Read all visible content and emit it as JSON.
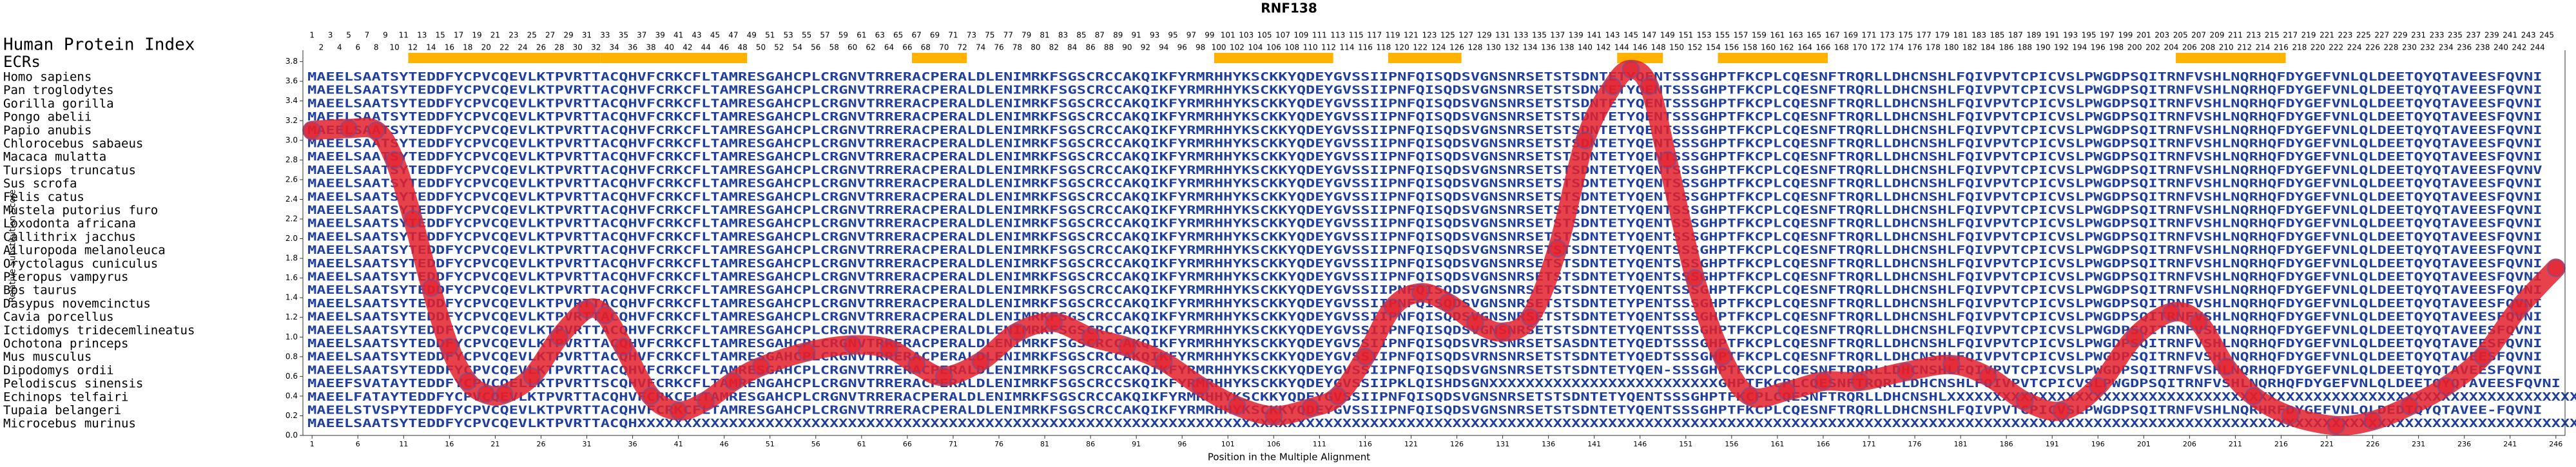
{
  "chart_data": {
    "type": "line",
    "title": "RNF138",
    "xlabel": "Position in the Multiple Alignment",
    "ylabel": "Relative Substitution Score",
    "color": "#e3202b",
    "marker_edge_color": "#3d5fc4",
    "xlim": [
      0,
      247
    ],
    "ylim": [
      0,
      3.85
    ],
    "xticks": [
      1,
      6,
      11,
      16,
      21,
      26,
      31,
      36,
      41,
      46,
      51,
      56,
      61,
      66,
      71,
      76,
      81,
      86,
      91,
      96,
      101,
      106,
      111,
      116,
      121,
      126,
      131,
      136,
      141,
      146,
      151,
      156,
      161,
      166,
      171,
      176,
      181,
      186,
      191,
      196,
      201,
      206,
      211,
      216,
      221,
      226,
      231,
      236,
      241,
      246
    ],
    "yticks": [
      {
        "value": 0,
        "label": "0.0"
      },
      0.2,
      0.4,
      0.6,
      0.8,
      {
        "value": 1,
        "label": "1.0"
      },
      1.2,
      1.4,
      1.6,
      1.8,
      {
        "value": 2,
        "label": "2.0"
      },
      2.2,
      2.4,
      2.6,
      2.8,
      {
        "value": 3,
        "label": "3.0"
      },
      3.2,
      3.4,
      3.6,
      3.8
    ],
    "x": [
      1,
      5,
      8,
      10,
      12,
      14,
      16,
      18,
      20,
      22,
      25,
      28,
      31,
      33,
      35,
      38,
      41,
      44,
      47,
      50,
      55,
      60,
      64,
      67,
      70,
      74,
      78,
      82,
      86,
      90,
      94,
      98,
      102,
      106,
      110,
      113,
      116,
      119,
      122,
      125,
      128,
      131,
      134,
      137,
      140,
      143,
      145,
      147,
      149,
      152,
      155,
      158,
      162,
      166,
      170,
      175,
      180,
      184,
      188,
      192,
      196,
      200,
      204,
      207,
      210,
      213,
      217,
      222,
      226,
      230,
      234,
      238,
      242,
      246
    ],
    "values": [
      3.1,
      3.12,
      3.1,
      2.8,
      2.2,
      1.5,
      0.9,
      0.55,
      0.42,
      0.42,
      0.6,
      1.0,
      1.28,
      1.22,
      0.9,
      0.4,
      0.25,
      0.35,
      0.55,
      0.7,
      0.85,
      0.92,
      0.88,
      0.72,
      0.6,
      0.75,
      1.05,
      1.15,
      1.0,
      0.9,
      0.75,
      0.5,
      0.3,
      0.2,
      0.28,
      0.4,
      0.8,
      1.3,
      1.45,
      1.35,
      1.15,
      1.05,
      1.2,
      1.9,
      3.0,
      3.55,
      3.72,
      3.55,
      2.8,
      1.6,
      0.8,
      0.4,
      0.45,
      0.55,
      0.55,
      0.65,
      0.72,
      0.6,
      0.35,
      0.25,
      0.5,
      1.0,
      1.25,
      1.15,
      0.7,
      0.4,
      0.2,
      0.1,
      0.15,
      0.3,
      0.5,
      0.8,
      1.3,
      1.7
    ],
    "alignment": {
      "index_label": "Human Protein Index",
      "protein_index": [
        1,
        2,
        3,
        4,
        5,
        6,
        7,
        8,
        9,
        10,
        11,
        12,
        13,
        14,
        15,
        16,
        17,
        18,
        19,
        20,
        21,
        22,
        23,
        24,
        25,
        26,
        27,
        28,
        29,
        30,
        31,
        32,
        33,
        34,
        35,
        36,
        37,
        38,
        39,
        40,
        41,
        42,
        43,
        44,
        45,
        46,
        47,
        48,
        49,
        50,
        51,
        52,
        53,
        54,
        55,
        56,
        57,
        58,
        59,
        60,
        61,
        62,
        63,
        64,
        65,
        66,
        67,
        68,
        69,
        70,
        71,
        72,
        73,
        74,
        75,
        76,
        77,
        78,
        79,
        80,
        81,
        82,
        83,
        84,
        85,
        86,
        87,
        88,
        89,
        90,
        91,
        92,
        93,
        94,
        95,
        96,
        97,
        98,
        99,
        100,
        101,
        102,
        103,
        104,
        105,
        106,
        107,
        108,
        109,
        110,
        111,
        112,
        113,
        114,
        115,
        116,
        117,
        118,
        119,
        120,
        121,
        122,
        123,
        124,
        125,
        126,
        127,
        128,
        129,
        130,
        131,
        132,
        133,
        134,
        135,
        136,
        137,
        138,
        139,
        140,
        141,
        142,
        143,
        144,
        145,
        146,
        147,
        148,
        149,
        150,
        151,
        152,
        153,
        154,
        155,
        156,
        157,
        158,
        159,
        160,
        161,
        162,
        163,
        164,
        165,
        166,
        167,
        168,
        169,
        170,
        171,
        172,
        173,
        174,
        175,
        176,
        177,
        178,
        179,
        180,
        181,
        182,
        183,
        184,
        185,
        186,
        187,
        188,
        189,
        190,
        191,
        192,
        193,
        194,
        195,
        196,
        197,
        198,
        199,
        200,
        201,
        202,
        203,
        204,
        205,
        206,
        207,
        208,
        209,
        210,
        211,
        212,
        213,
        214,
        215,
        216,
        217,
        218,
        219,
        220,
        221,
        222,
        223,
        224,
        225,
        226,
        227,
        228,
        229,
        230,
        231,
        232,
        233,
        234,
        235,
        236,
        237,
        238,
        239,
        240,
        241,
        242,
        243,
        244,
        245
      ],
      "ecr_label": "ECRs",
      "ecr_color": "#ffb300",
      "ecrs": [
        [
          12,
          32
        ],
        [
          33,
          48
        ],
        [
          67,
          72
        ],
        [
          100,
          112
        ],
        [
          119,
          126
        ],
        [
          144,
          148
        ],
        [
          155,
          166
        ],
        [
          205,
          216
        ]
      ],
      "rows": [
        {
          "name": "Homo sapiens",
          "sequence": "MAEELSAATSYTEDDFYCPVCQEVLKTPVRTTACQHVFCRKCFLTAMRESGAHCPLCRGNVTRRERACPERALDLENIMRKFSGSCRCCAKQIKFYRMRHHYKSCKKYQDEYGVSSIIPNFQISQDSVGNSNRSETSTSDNTETYQENTSSSGHPTFKCPLCQESNFTRQRLLDHCNSHLFQIVPVTCPICVSLPWGDPSQITRNFVSHLNQRHQFDYGEFVNLQLDEETQYQTAVEESFQVNI"
        },
        {
          "name": "Pan troglodytes",
          "sequence": "MAEELSAATSYTEDDFYCPVCQEVLKTPVRTTACQHVFCRKCFLTAMRESGAHCPLCRGNVTRRERACPERALDLENIMRKFSGSCRCCAKQIKFYRMRHHYKSCKKYQDEYGVSSIIPNFQISQDSVGNSNRSETSTSDNTETYQENTSSSGHPTFKCPLCQESNFTRQRLLDHCNSHLFQIVPVTCPICVSLPWGDPSQITRNFVSHLNQRHQFDYGEFVNLQLDEETQYQTAVEESFQVNI"
        },
        {
          "name": "Gorilla gorilla",
          "sequence": "MAEELSAATSYTEDDFYCPVCQEVLKTPVRTTACQHVFCRKCFLTAMRESGAHCPLCRGNVTRRERACPERALDLENIMRKFSGSCRCCAKQIKFYRMRHHYKSCKKYQDEYGVSSIIPNFQISQDSVGNSNRSETSTSDNTETYQENTSSSGHPTFKCPLCQESNFTRQRLLDHCNSHLFQIVPVTCPICVSLPWGDPSQITRNFVSHLNQRHQFDYGEFVNLQLDEETQYQTAVEESFQVNI"
        },
        {
          "name": "Pongo abelii",
          "sequence": "MAEELSAATSYTEDDFYCPVCQEVLKTPVRTTACQHVFCRKCFLTAMRESGAHCPLCRGNVTRRERACPERALDLENIMRKFSGSCRCCAKQIKFYRMRHHYKSCKKYQDEYGVSSIIPNFQISQDSVGNSNRSETSTSDNTETYQENTSSSGHPTFKCPLCQESNFTRQRLLDHCNSHLFQIVPVTCPICVSLPWGDPSQITRNFVSHLNQRHQFDYGEFVNLQLDEETQYQTAVEESFQVNI"
        },
        {
          "name": "Papio anubis",
          "sequence": "MAEELSAATSYTEDDFYCPVCQEVLKTPVRTTACQHVFCRKCFLTAMRESGAHCPLCRGNVTRRERACPERALDLENIMRKFSGSCRCCAKQIKFYRMRHHYKSCKKYQDEYGVSSIIPNFQISQDSVGNSNRSETSTSDNTETYQENTSSSGHPTFKCPLCQESNFTRQRLLDHCNSHLFQIVPVTCPICVSLPWGDPSQITRNFVSHLNQRHQFDYGEFVNLQLDEETQYQTAVEESFQVNI"
        },
        {
          "name": "Chlorocebus sabaeus",
          "sequence": "MAEELSAATSYTEDDFYCPVCQEVLKTPVRTTACQHVFCRKCFLTAMRESGAHCPLCRGNVTRRERACPERALDLENIMRKFSGSCRCCAKQIKFYRMRHHYKSCKKYQDEYGVSSIIPNFQISQDSVGNSNRSETSTSDNTETYQENTSSSGHPTFKCPLCQESNFTRQRLLDHCNSHLFQIVPVTCPICVSLPWGDPSQITRNFVSHLNQRHQFDYGEFVNLQLDEETQYQTAVEESFQVNI"
        },
        {
          "name": "Macaca mulatta",
          "sequence": "MAEELSAATSYTEDDFYCPVCQEVLKTPVRTTACQHVFCRKCFLTAMRESGAHCPLCRGNVTRRERACPERALDLENIMRKFSGSCRCCAKQIKFYRMRHHYKSCKKYQDEYGVSSIIPNFQISQDSVGNSNRSETSTSDNTETYQENTSSSGHPTFKCPLCQESNFTRQRLLDHCNSHLFQIVPVTCPICVSLPWGDPSQITRNFVSHLNQRHQFDYGEFVNLQLDEETQYQTAVEESFQVNI"
        },
        {
          "name": "Tursiops truncatus",
          "sequence": "MAEELSAATSYTEDDFYCPVCQEVLKTPVRTTACQHVFCRKCFLTAMRESGAHCPLCRGNVTRRERACPERALDLENIMRKFSGSCRCCAKQIKFYRMRHHYKSCKKYQDEYGVSSIIPNFQISQDSVGNSNRSETSTSDNTETYQENTSSSGHPTFKCPLCQESNFTRQRLLDHCNSHLFQIVPVTCPICVSLPWGDPSQITRNFVSHLNQRHQFDYGEFVNLQLDEETQYQTAVEESFQVNV"
        },
        {
          "name": "Sus scrofa",
          "sequence": "MAEELSAATSYTEDDFYCPVCQEVLKTPVRTTACQHVFCRKCFLTAMRESGAHCPLCRGNVTRRERACPERALDLENIMRKFSGSCRCCAKQIKFYRMRHHYKSCKKYQDEYGVSSIIPNFQISQDSVGNSNRSETSTSDNTETYQENTSSSGHPTFKCPLCQESNFTRQRLLDHCNSHLFQIVPVTCPICVSLPWGDPSQITRNFVSHLNQRHQFDYGEFVNLQLDEETQYQTAVEESFQVNI"
        },
        {
          "name": "Felis catus",
          "sequence": "MAEELSAATSYTEDDFYCPVCQEVLKTPVRTTACQHVFCRKCFLTAMRESGAHCPLCRGNVTRRERACPERALDLENIMRKFSGSCRCCAKQIKFYRMRHHYKSCKKYQDEYGVSSIIPNFQISQDSVGNSNRSETSTSDNTETYQENTSSSGHPTFKCPLCQESNFTRQRLLDHCNSHLFQIVPVTCPICVSLPWGDPSQITRNFVSHLNQRHQFDYGEFVNLQLDEETQYQTAVEESFQVNI"
        },
        {
          "name": "Mustela putorius furo",
          "sequence": "MAEELSAATSYTEDDFYCPVCQEVLKTPVRTTACQHVFCRKCFLTAMRESGAHCPLCRGNVTRRERACPERALDLENIMRKFSGSCRCCAKQIKFYRMRHHYKSCKKYQDEYGVSSIIPNFQISQDSVGNSNRSETSTSDNTETYQENTSSSGHPTFKCPLCQESNFTRQRLLDHCNSHLFQIVPVTCPICVSLPWGDPSQITRNFVSHLNQRHQFDYGEFVNLQLDEETQYQTAVEESFQVNI"
        },
        {
          "name": "Loxodonta africana",
          "sequence": "MAEELSAATSYTEDDFYCPVCQEVLKTPVRTTACQHVFCRKCFLTAMRESGAHCPLCRGNVTRRERACPERALDLENIMRKFSGSCRCCAKQIKFYRMRHHYKSCKKYQDEYGVSSIIPNFQISQDSVGNSNRSETSTSDNTETYQENTSSSGHPTFKCPLCQESNFTRQRLLDHCNSHLFQIVPVTCPICVSLPWGDPSQITRNFVSHLNQRHQFDYGEFVNLQLDEETQYQTAVEESFQVNI"
        },
        {
          "name": "Callithrix jacchus",
          "sequence": "MAEELSAATSYTEDDFYCPVCQEVLKTPVRTTACQHVFCRKCFLTAMRESGAHCPLCRGNVTRRERACPERALDLENIMRKFSGSCRCCAKQIKFYRMRHHYKSCKKYQDEYGVSSIIPNFQISQDSVGNSNRSETSTSDNTETYQENTSSSGHPTFKCPLCQESNFTRQRLLDHCNSHLFQIVPVTCPICVSLPWGDPSQITRNFVSHLNQRHQFDYGEFVNLQLDEETQYQTAVEESFQVNI"
        },
        {
          "name": "Ailuropoda melanoleuca",
          "sequence": "MAEELSAATSYTEDDFYCPVCQEVLKTPVRTTACQHVFCRKCFLTAMRESGAHCPLCRGNVTRRERACPERALDLENIMRKFSGSCRCCAKQIKFYRMRHHYKSCKKYQDEYGVSSIIPNFQISQDSVGNSNRSETSTSDNTETYQENTSSSGHPTFKCPLCQESNFTRQRLLDHCNSHLFQIVPVTCPICVSLPWGDPSQITRNFVSHLNQRHQFDYGEFVNLQLDEETQYQTAVEESFQVNI"
        },
        {
          "name": "Oryctolagus cuniculus",
          "sequence": "MAEELSAATSYTEDDFYCPVCQEVLKTPVRTTACQHVFCRKCFLTAMRESGAHCPLCRGNVTRRERACPERALDLENIMRKFSGSCRCCAKQIKFYRMRHHYKSCKKYQDEYGVSSIIPNFQISQDSVGNSNRSETSTSDNTETYQENTSSSGHPTFKCPLCQESNFTRQRLLDHCNSHLFQIVPVTCPICVSLPWGDPSQITRNFVSHLNQRHQFDYGEFVNLQLDEETQYQTAVEESFQVNI"
        },
        {
          "name": "Pteropus vampyrus",
          "sequence": "MAEELSAATSYTEDDFYCPVCQEVLKTPVRTTACQHVFCRKCFLTAMRESGAHCPLCRGNVTRRERACPERALDLENIMRKFSGSCRCCAKQIKFYRMRHHYKSCKKYQDEYGVSSIIPNFQISQDSVGNSNRSETSTSDNTETYQENTSSSGHPTFKCPLCQESNFTRQRLLDHCNSHLFQIVPVTCPICVSLPWGDPSQITRNFVSHLNQRHQFDYGEFVNLQLDEETQYQTAVEESFQVNI"
        },
        {
          "name": "Bos taurus",
          "sequence": "MAEELSAATSYTEDDFYCPVCQEVLKTPVRTTACQHVFCRKCFLTAMRESGAHCPLCRGNVTRRERACPERALDLENIMRKFSGSCRCCAKQIKFYRMRHHYKSCKKYQDEYGVSSIIPNFQISQDSVGNSNRSETSTSDNTETYQENTSSSGHPTFKCPLCQESNFTRQRLLDHCNSHLFQIVPVTCPICVSLPWGDPSQITRNFVSHLNQRHQFDYGEFVNLQLDEETQYQTAVEESFQVNI"
        },
        {
          "name": "Dasypus novemcinctus",
          "sequence": "MAEELSAATSYTEDDFYCPVCQEVLKTPVRTTACQHVFCRKCFLTAMRESGAHCPLCRGNVTRRERACPERALDLENIMRKFSGSCRCCAKQIKFYRMRHHYKSCKKYQDEYGVSSIIPNFQISQDSVGNSNRSETSTSDNTETYPENTSSSGHPTFKCPLCQESNFTRQRLLDHCNSHLFQIVPVTCPICVSLPWGDPSQITRNFVSHLNQRHQFDYGEFVNLQLDEETQYQTAVEESFQVNI"
        },
        {
          "name": "Cavia porcellus",
          "sequence": "MAEELSAATSYTEDDFYCPVCQEVLKTPVRTTACQHVFCRKCFLTAMRESGAHCPLCRGNVTRRERACPERALDLENIMRKFSGSCRCCAKQIKFYRMRHHYKSCKKYQDEYGVSSIIPNFQISQDSVGNSNRSETSTSDNTETYQENTSSSGHPTFKCPLCQESNFTRQRLLDHCNSHLFQIVPVTCPICVSLPWGDPSQITRNFVSHLNQRHQFDYGEFVNLQLDEETQYQTAVEESFQVNI"
        },
        {
          "name": "Ictidomys tridecemlineatus",
          "sequence": "MAEELSAATSYTEDDFYCPVCQEVLKTPVRTTACQHVFCRKCFLTAMRESGAHCPLCRGNVTRRERACPERALDLENIMRKFSGSCRCCAKQIKFYRMRHHYKSCKKYQDEYGVSSIIPNFQISQDSVGNSNRSETSTSDNTETYQENTSSSGHPTFKCPLCQESNFTRQRLLDHCNSHLFQIVPVTCPICVSLPWGDPSQITRNFVSHLNQRHQFDYGEFVNLQLDEETQYQTAVEESFQVNI"
        },
        {
          "name": "Ochotona princeps",
          "sequence": "MAEELSAATSYTEDDFYCPVCQEVLKTPVRTTACQHVFCRKCFLTAMRESGAHCPLCRGNVTRRERACPERALDLENIMRKFSGSCRCCAKQIKFYRMRHHYKSCKKYQDEYGVSSIIPNFQISQDSVRSSNRSETSASDNTETYQEDTSSSGHPTFKCPLCQESNFTRQRLLDHCNSHLFQIVPVTCPICVSLPWGDPSQITRNFVSHLNQRHQFDYGEFVNLQLDEETQYQTAVEESFQVNI"
        },
        {
          "name": "Mus musculus",
          "sequence": "MAEELSAATSYTEDDFYCPVCQEVLKTPVRTTACQHVFCRKCFLTAMRESGAHCPLCRGNVTRRERACPERALDLENIMRKFSGSCRCCAKQIKFYRMRHHYKSCKKYQDEYGVSSIIPNFQISQDSVRNSNRSETSTSDNTETYQEDTSSSGHPTFKCPLCQESNFTRQRLLDHCNSHLFQIVPVTCPICVSLPWGDPSQITRNFVSHLNQRHQFDYGEFVNLQLDEETQYQTAVEESFQVNI"
        },
        {
          "name": "Dipodomys ordii",
          "sequence": "MAEELSAATSYTEDDFYCPVCQEVLKTPVRTTACQHVFCRKCFLTAMRESGAHCPLCRGNVTRRERACPERALDLENIMRKFSGSCRCCAKQIKFYRMRHHYKSCKKYQDEYGVSSIIPNFQISQDSVGNSNRSETSTSDNTETYQEN-SSSGHPTFKCPLCQESNFTRQRLLDHCNSHLFQIVPVTCPICVSLPWGDPSQITRNFVSHLNQRHQFDYGEFVNLQLDEETQYQTAVEESFQVNI"
        },
        {
          "name": "Pelodiscus sinensis",
          "sequence": "MAEEFSVATAYTEDDFYCPVCQELLKTPVRTTSCQHVFCRKCFLTAMRENGAHCPLCRGNVTRRERACPERALDLENIMRKFSGSCRCCSKQIKFYRMRHHYKSCKKYQDEYGVSSIIPKLQISHDSGNXXXXXXXXXXXXXXXXXXXXXXXXXGHPTFKCPLCQESNFTRQRLLDHCNSHLFQIVPVTCPICVSLPWGDPSQITRNFVSHLNQRHQFDYGEFVNLQLDEETQYQTAVEESFQVNI"
        },
        {
          "name": "Echinops telfairi",
          "sequence": "MAEELFATAYTEDDFYCPVCQEVLKTPVRTTACQHVFCRKCFLTAMRESGAHCPLCRGNVTRRERACPERALDLENIMRKFSGSCRCCAKQIKFYRMRHHYKSCKKYQDEYGVSSIIPNFQISQDSVGNSNRSETSTSDNTETYQENTSSSGHPTFKCPLCQESNFTRQRLLDHCNSHLXXXXXXXXXXXXXXXXXXXXXXXXXXXXXXXXXXXXXXXXXXXXXXXXXXXXXXXXXXXXXXXXXXXXXXXXXXXXX"
        },
        {
          "name": "Tupaia belangeri",
          "sequence": "MAEELSTVSPYTEDDFYCPVCQEVLKTPVRTTACQHVFCRKCFLTAMRESGAHCPLCRGNVTRRERACPERALDLENIMRKFSGSCRCCAKQIKFYRMRHHYKSCKKYQDEYGVSSIIPNFQISQDSVGNSNRSETSTSDNTETYQENTSSSGHPTFKCPLCQESNFTRQRLLDHCNSHLFQIVPVTCPICVSLPWGDPSQITRNFVSHLNQRHRFDYGEFVNLQLDEDTQYQTAVEE-FQVNI"
        },
        {
          "name": "Microcebus murinus",
          "sequence": "MAEELSAATSYTEDDFYCPVCQEVLKTPVRTTACQHXXXXXXXXXXXXXXXXXXXXXXXXXXXXXXXXXXXXXXXXXXXXXXXXXXXXXXXXXXXXXXXXXXXXXXXXXXXXXXXXXXXXXXXXXXXXXXXXXXXXXXXXXXXXXXXXXXXXXXXXXXXXXXXXXXXXXXXXXXXXXXXXXXXXXXXXXXXXXXXXXXXXXXXXXXXXXXXXXXXXXXXXXXXXXXXXXXXXXXXXXXXXXXXXXXXXXXXXX"
        }
      ]
    }
  }
}
